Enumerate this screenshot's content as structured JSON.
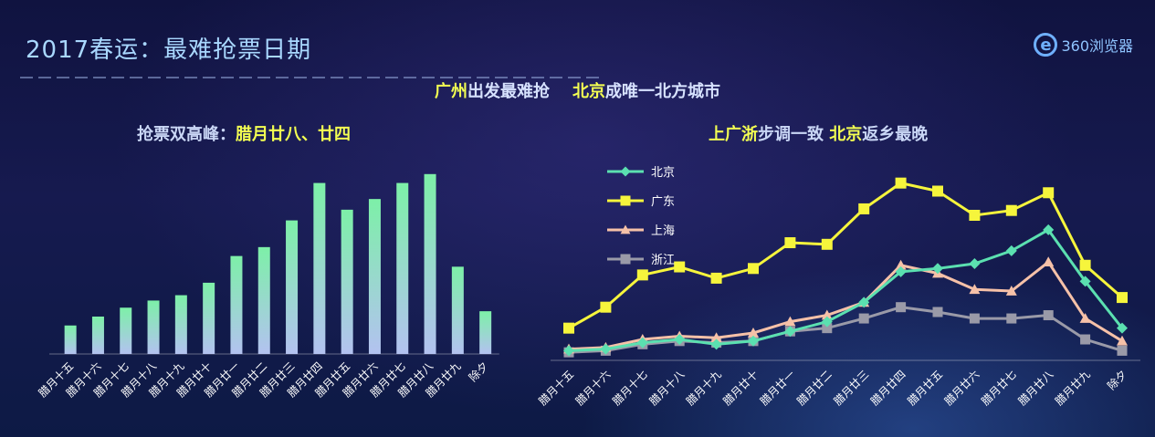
{
  "header": {
    "title": "2017春运：最难抢票日期",
    "logo_text": "360浏览器"
  },
  "subtitle": {
    "part1_hl": "广州",
    "part1_rest": "出发最难抢",
    "part2_hl": "北京",
    "part2_rest": "成唯一北方城市"
  },
  "left_panel": {
    "title_prefix": "抢票双高峰：",
    "title_hl": "腊月廿八、廿四"
  },
  "right_panel": {
    "hl1": "上广浙",
    "text1": "步调一致 ",
    "hl2": "北京",
    "text2": "返乡最晚"
  },
  "colors": {
    "bar_top": "#7df0a8",
    "bar_bottom": "#b3c2f0",
    "beijing": "#5be0b0",
    "guangdong": "#f6f53c",
    "shanghai": "#f6c1a8",
    "zhejiang": "#9a9aa8"
  },
  "chart_data": [
    {
      "type": "bar",
      "categories": [
        "腊月十五",
        "腊月十六",
        "腊月十七",
        "腊月十八",
        "腊月十九",
        "腊月廿十",
        "腊月廿一",
        "腊月廿二",
        "腊月廿三",
        "腊月廿四",
        "腊月廿五",
        "腊月廿六",
        "腊月廿七",
        "腊月廿八",
        "腊月廿九",
        "除夕"
      ],
      "values": [
        16,
        21,
        26,
        30,
        33,
        40,
        55,
        60,
        75,
        96,
        81,
        87,
        96,
        101,
        49,
        24
      ],
      "ylim": [
        0,
        105
      ],
      "grid": false,
      "legend": "none"
    },
    {
      "type": "line",
      "categories": [
        "腊月十五",
        "腊月十六",
        "腊月十七",
        "腊月十八",
        "腊月十九",
        "腊月廿十",
        "腊月廿一",
        "腊月廿二",
        "腊月廿三",
        "腊月廿四",
        "腊月廿五",
        "腊月廿六",
        "腊月廿七",
        "腊月廿八",
        "腊月廿九",
        "除夕"
      ],
      "series": [
        {
          "name": "北京",
          "color": "#5be0b0",
          "marker": "diamond",
          "values": [
            6,
            7,
            11,
            13,
            10,
            12,
            18,
            24,
            36,
            55,
            57,
            60,
            68,
            81,
            49,
            20
          ]
        },
        {
          "name": "广东",
          "color": "#f6f53c",
          "marker": "square",
          "values": [
            20,
            33,
            53,
            58,
            51,
            57,
            73,
            72,
            94,
            110,
            105,
            90,
            93,
            104,
            59,
            39
          ]
        },
        {
          "name": "上海",
          "color": "#f6c1a8",
          "marker": "triangle",
          "values": [
            7,
            8,
            13,
            15,
            14,
            17,
            24,
            28,
            36,
            59,
            54,
            44,
            43,
            61,
            26,
            12
          ]
        },
        {
          "name": "浙江",
          "color": "#9a9aa8",
          "marker": "square",
          "values": [
            5,
            6,
            10,
            12,
            11,
            12,
            18,
            20,
            26,
            33,
            30,
            26,
            26,
            28,
            13,
            6
          ]
        }
      ],
      "ylim": [
        0,
        120
      ],
      "grid": false,
      "legend": "top-left"
    }
  ]
}
